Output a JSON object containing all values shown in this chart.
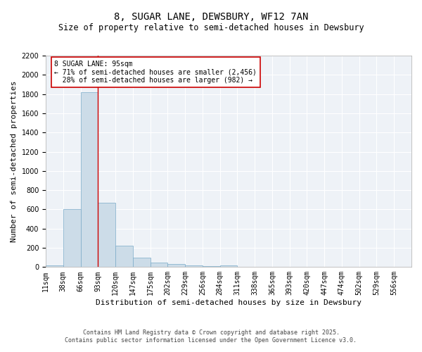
{
  "title": "8, SUGAR LANE, DEWSBURY, WF12 7AN",
  "subtitle": "Size of property relative to semi-detached houses in Dewsbury",
  "xlabel": "Distribution of semi-detached houses by size in Dewsbury",
  "ylabel": "Number of semi-detached properties",
  "bin_labels": [
    "11sqm",
    "38sqm",
    "66sqm",
    "93sqm",
    "120sqm",
    "147sqm",
    "175sqm",
    "202sqm",
    "229sqm",
    "256sqm",
    "284sqm",
    "311sqm",
    "338sqm",
    "365sqm",
    "393sqm",
    "420sqm",
    "447sqm",
    "474sqm",
    "502sqm",
    "529sqm",
    "556sqm"
  ],
  "counts": [
    20,
    600,
    1820,
    670,
    220,
    100,
    45,
    35,
    20,
    10,
    15,
    0,
    0,
    0,
    0,
    0,
    0,
    0,
    0,
    0,
    0
  ],
  "bar_color": "#ccdce8",
  "bar_edge_color": "#7aaac8",
  "subject_bin_index": 3,
  "subject_line_color": "#cc0000",
  "annotation_text": "8 SUGAR LANE: 95sqm\n← 71% of semi-detached houses are smaller (2,456)\n  28% of semi-detached houses are larger (982) →",
  "annotation_box_color": "#ffffff",
  "annotation_box_edge_color": "#cc0000",
  "ylim": [
    0,
    2200
  ],
  "yticks": [
    0,
    200,
    400,
    600,
    800,
    1000,
    1200,
    1400,
    1600,
    1800,
    2000,
    2200
  ],
  "background_color": "#eef2f7",
  "footer1": "Contains HM Land Registry data © Crown copyright and database right 2025.",
  "footer2": "Contains public sector information licensed under the Open Government Licence v3.0.",
  "title_fontsize": 10,
  "subtitle_fontsize": 8.5,
  "axis_label_fontsize": 8,
  "tick_fontsize": 7,
  "annotation_fontsize": 7,
  "footer_fontsize": 6
}
